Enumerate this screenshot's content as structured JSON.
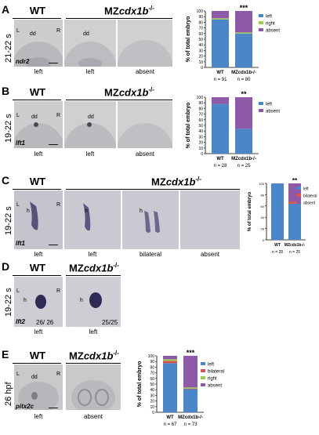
{
  "colors": {
    "left": "#4a86c8",
    "right": "#9bcb4a",
    "absent": "#8e59a8",
    "bilateral": "#d9534f",
    "embryo_bg": "#c7c7c9"
  },
  "panels": [
    {
      "letter": "A",
      "stage": "21-22 s",
      "gene": "ndr2",
      "wt": "WT",
      "mut_prefix": "MZ",
      "mut_gene": "cdx1b",
      "mut_sup": "-/-",
      "captions": [
        "left",
        "left",
        "absent"
      ],
      "labels": {
        "L": "L",
        "dd": "dd",
        "R": "R",
        "dd2": "dd"
      }
    },
    {
      "letter": "B",
      "stage": "19-22 s",
      "gene": "lft1",
      "wt": "WT",
      "mut_prefix": "MZ",
      "mut_gene": "cdx1b",
      "mut_sup": "-/-",
      "captions": [
        "left",
        "left",
        "absent"
      ],
      "labels": {
        "L": "L",
        "dd": "dd",
        "R": "R",
        "dd2": "dd"
      }
    },
    {
      "letter": "C",
      "stage": "19-22 s",
      "gene": "lft1",
      "wt": "WT",
      "mut_prefix": "MZ",
      "mut_gene": "cdx1b",
      "mut_sup": "-/-",
      "captions": [
        "left",
        "left",
        "bilateral",
        "absent"
      ],
      "labels": {
        "L": "L",
        "h": "h",
        "R": "R",
        "h2": "h",
        "h3": "h"
      }
    },
    {
      "letter": "D",
      "stage": "19-22 s",
      "gene": "lft2",
      "wt": "WT",
      "mut_prefix": "MZ",
      "mut_gene": "cdx1b",
      "mut_sup": "-/-",
      "captions": [
        "left",
        "left"
      ],
      "labels": {
        "L": "L",
        "h": "h",
        "R": "R",
        "h2": "h"
      },
      "counts": [
        "26/ 26",
        "25/25"
      ]
    },
    {
      "letter": "E",
      "stage": "26 hpf",
      "gene": "pitx2c",
      "wt": "WT",
      "mut_prefix": "MZ",
      "mut_gene": "cdx1b",
      "mut_sup": "-/-",
      "captions": [
        "left",
        "absent"
      ],
      "labels": {
        "L": "L",
        "dd": "dd",
        "R": "R"
      }
    }
  ],
  "chart_data": [
    {
      "type": "bar",
      "stacked": true,
      "panel": "A",
      "categories": [
        "WT",
        "MZcdx1b-/-"
      ],
      "ylabel": "% of total embryo",
      "ylim": [
        0,
        100
      ],
      "yticks": [
        0,
        10,
        20,
        30,
        40,
        50,
        60,
        70,
        80,
        90,
        100
      ],
      "n": [
        "n = 91",
        "n = 80"
      ],
      "significance": "***",
      "series": [
        {
          "name": "left",
          "values": [
            85,
            60
          ]
        },
        {
          "name": "right",
          "values": [
            2,
            2
          ]
        },
        {
          "name": "absent",
          "values": [
            13,
            38
          ]
        }
      ],
      "legend": "right"
    },
    {
      "type": "bar",
      "stacked": true,
      "panel": "B",
      "categories": [
        "WT",
        "MZcdx1b-/-"
      ],
      "ylabel": "% of total embryo",
      "ylim": [
        0,
        100
      ],
      "yticks": [
        0,
        10,
        20,
        30,
        40,
        50,
        60,
        70,
        80,
        90,
        100
      ],
      "n": [
        "n = 28",
        "n = 25"
      ],
      "significance": "**",
      "series": [
        {
          "name": "left",
          "values": [
            88,
            44
          ]
        },
        {
          "name": "absent",
          "values": [
            12,
            56
          ]
        }
      ],
      "legend": "right"
    },
    {
      "type": "bar",
      "stacked": true,
      "panel": "C",
      "categories": [
        "WT",
        "MZcdx1b-/-"
      ],
      "ylabel": "% of total embryo",
      "ylim": [
        0,
        100
      ],
      "yticks": [
        0,
        20,
        40,
        60,
        80,
        100
      ],
      "n": [
        "n = 28",
        "n = 25"
      ],
      "significance": "**",
      "series": [
        {
          "name": "left",
          "values": [
            100,
            64
          ]
        },
        {
          "name": "bilateral",
          "values": [
            0,
            4
          ]
        },
        {
          "name": "absent",
          "values": [
            0,
            32
          ]
        }
      ],
      "legend": "right"
    },
    {
      "type": "bar",
      "stacked": true,
      "panel": "E",
      "categories": [
        "WT",
        "MZcdx1b-/-"
      ],
      "ylabel": "% of total embryo",
      "ylim": [
        0,
        100
      ],
      "yticks": [
        0,
        10,
        20,
        30,
        40,
        50,
        60,
        70,
        80,
        90,
        100
      ],
      "n": [
        "n = 67",
        "n = 73"
      ],
      "significance": "***",
      "series": [
        {
          "name": "left",
          "values": [
            87,
            41
          ]
        },
        {
          "name": "bilateral",
          "values": [
            4,
            1
          ]
        },
        {
          "name": "right",
          "values": [
            3,
            2
          ]
        },
        {
          "name": "absent",
          "values": [
            6,
            56
          ]
        }
      ],
      "legend": "right"
    }
  ]
}
